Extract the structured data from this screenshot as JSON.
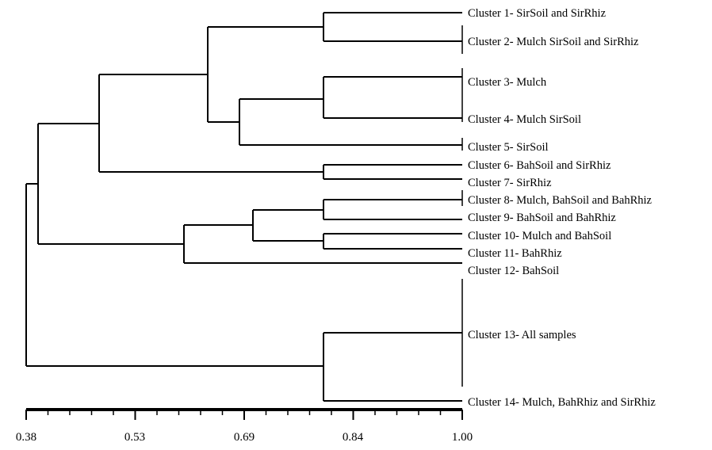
{
  "dendrogram": {
    "scale_ticks": [
      "0.38",
      "0.53",
      "0.69",
      "0.84",
      "1.00"
    ],
    "x_range": [
      0.38,
      1.0
    ],
    "clusters": [
      "Cluster 1- SirSoil and SirRhiz",
      "Cluster 2- Mulch SirSoil and SirRhiz",
      "Cluster 3- Mulch",
      "Cluster 4- Mulch SirSoil",
      "Cluster 5- SirSoil",
      "Cluster 6- BahSoil and SirRhiz",
      "Cluster 7- SirRhiz",
      "Cluster 8- Mulch, BahSoil and BahRhiz",
      "Cluster 9- BahSoil and BahRhiz",
      "Cluster 10- Mulch and BahSoil",
      "Cluster 11- BahRhiz",
      "Cluster 12- BahSoil",
      "Cluster 13- All samples",
      "Cluster 14- Mulch, BahRhiz and SirRhiz"
    ]
  }
}
